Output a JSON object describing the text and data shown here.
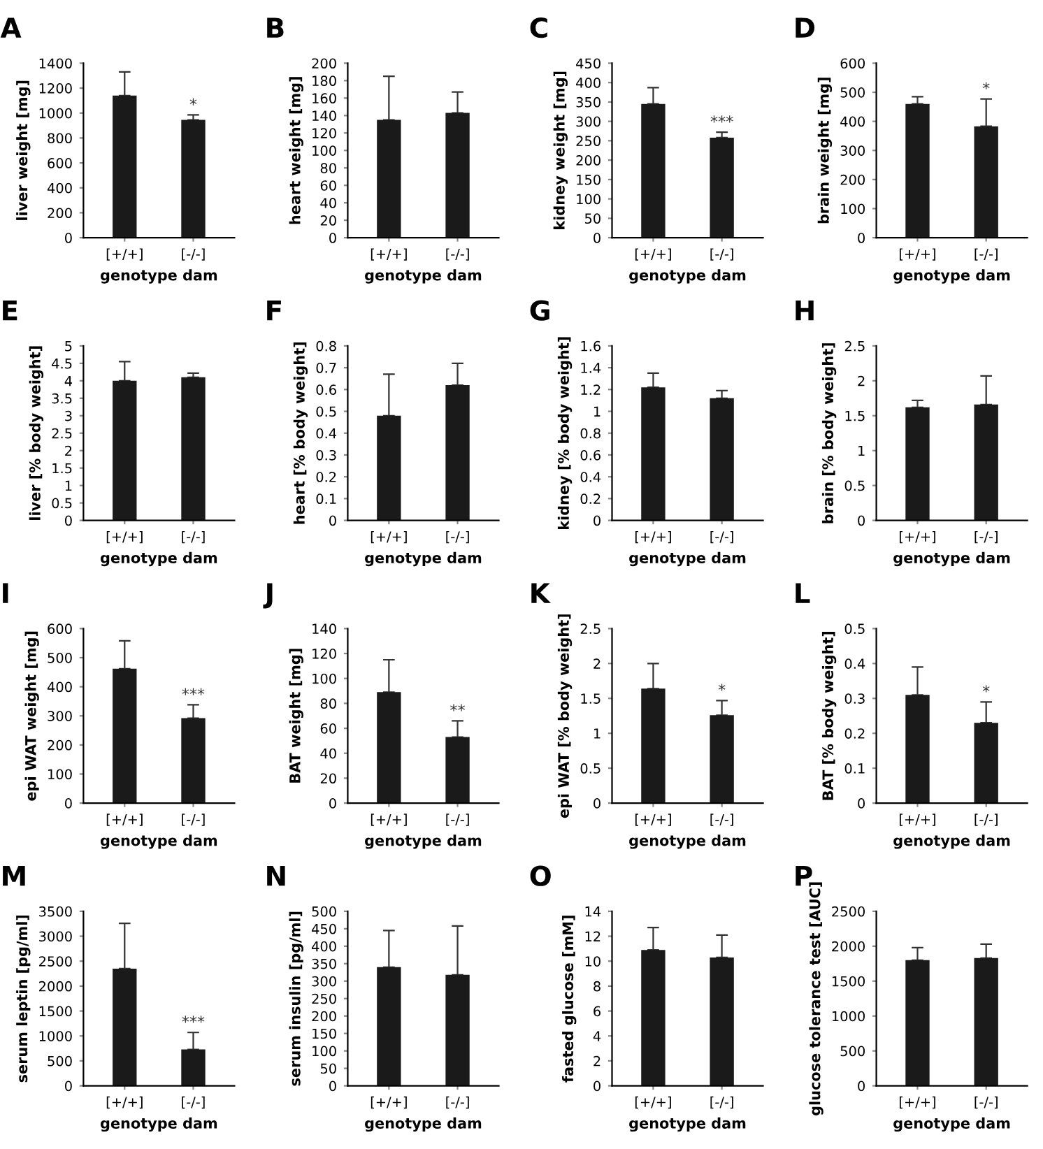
{
  "chart_data": [
    {
      "type": "bar",
      "title": "A",
      "xlabel": "genotype dam",
      "ylabel": "liver weight [mg]",
      "categories": [
        "[+/+]",
        "[-/-]"
      ],
      "values": [
        1140,
        945
      ],
      "errors": [
        [
          1140,
          1330
        ],
        [
          945,
          985
        ]
      ],
      "color": "#1a1a1a",
      "ylim": [
        0,
        1400
      ],
      "yticks": [
        0,
        200,
        400,
        600,
        800,
        1000,
        1200,
        1400
      ],
      "annotations": [
        {
          "text": "*",
          "x": "[-/-]",
          "y": 985
        }
      ]
    },
    {
      "type": "bar",
      "title": "B",
      "xlabel": "genotype dam",
      "ylabel": "heart weight [mg]",
      "categories": [
        "[+/+]",
        "[-/-]"
      ],
      "values": [
        135,
        143
      ],
      "errors": [
        [
          135,
          185
        ],
        [
          143,
          167
        ]
      ],
      "color": "#1a1a1a",
      "ylim": [
        0,
        200
      ],
      "yticks": [
        0,
        20,
        40,
        60,
        80,
        100,
        120,
        140,
        160,
        180,
        200
      ]
    },
    {
      "type": "bar",
      "title": "C",
      "xlabel": "genotype dam",
      "ylabel": "kidney weight [mg]",
      "categories": [
        "[+/+]",
        "[-/-]"
      ],
      "values": [
        345,
        258
      ],
      "errors": [
        [
          345,
          387
        ],
        [
          258,
          272
        ]
      ],
      "color": "#1a1a1a",
      "ylim": [
        0,
        450
      ],
      "yticks": [
        0,
        50,
        100,
        150,
        200,
        250,
        300,
        350,
        400,
        450
      ],
      "annotations": [
        {
          "text": "***",
          "x": "[-/-]",
          "y": 272
        }
      ]
    },
    {
      "type": "bar",
      "title": "D",
      "xlabel": "genotype dam",
      "ylabel": "brain weight [mg]",
      "categories": [
        "[+/+]",
        "[-/-]"
      ],
      "values": [
        460,
        383
      ],
      "errors": [
        [
          460,
          485
        ],
        [
          383,
          477
        ]
      ],
      "color": "#1a1a1a",
      "ylim": [
        0,
        600
      ],
      "yticks": [
        0,
        100,
        200,
        300,
        400,
        500,
        600
      ],
      "annotations": [
        {
          "text": "*",
          "x": "[-/-]",
          "y": 477
        }
      ]
    },
    {
      "type": "bar",
      "title": "E",
      "xlabel": "genotype dam",
      "ylabel": "liver [% body weight]",
      "categories": [
        "[+/+]",
        "[-/-]"
      ],
      "values": [
        4.0,
        4.1
      ],
      "errors": [
        [
          4.0,
          4.55
        ],
        [
          4.1,
          4.22
        ]
      ],
      "color": "#1a1a1a",
      "ylim": [
        0,
        5
      ],
      "yticks": [
        0,
        0.5,
        1,
        1.5,
        2,
        2.5,
        3,
        3.5,
        4,
        4.5,
        5
      ]
    },
    {
      "type": "bar",
      "title": "F",
      "xlabel": "genotype dam",
      "ylabel": "heart [% body weight]",
      "categories": [
        "[+/+]",
        "[-/-]"
      ],
      "values": [
        0.48,
        0.62
      ],
      "errors": [
        [
          0.48,
          0.67
        ],
        [
          0.62,
          0.72
        ]
      ],
      "color": "#1a1a1a",
      "ylim": [
        0,
        0.8
      ],
      "yticks": [
        0,
        0.1,
        0.2,
        0.3,
        0.4,
        0.5,
        0.6,
        0.7,
        0.8
      ]
    },
    {
      "type": "bar",
      "title": "G",
      "xlabel": "genotype dam",
      "ylabel": "kidney [% body weight]",
      "categories": [
        "[+/+]",
        "[-/-]"
      ],
      "values": [
        1.22,
        1.12
      ],
      "errors": [
        [
          1.22,
          1.35
        ],
        [
          1.12,
          1.19
        ]
      ],
      "color": "#1a1a1a",
      "ylim": [
        0,
        1.6
      ],
      "yticks": [
        0,
        0.2,
        0.4,
        0.6,
        0.8,
        1,
        1.2,
        1.4,
        1.6
      ]
    },
    {
      "type": "bar",
      "title": "H",
      "xlabel": "genotype dam",
      "ylabel": "brain [% body weight]",
      "categories": [
        "[+/+]",
        "[-/-]"
      ],
      "values": [
        1.62,
        1.66
      ],
      "errors": [
        [
          1.62,
          1.72
        ],
        [
          1.66,
          2.07
        ]
      ],
      "color": "#1a1a1a",
      "ylim": [
        0,
        2.5
      ],
      "yticks": [
        0,
        0.5,
        1,
        1.5,
        2,
        2.5
      ]
    },
    {
      "type": "bar",
      "title": "I",
      "xlabel": "genotype dam",
      "ylabel": "epi WAT weight [mg]",
      "categories": [
        "[+/+]",
        "[-/-]"
      ],
      "values": [
        462,
        292
      ],
      "errors": [
        [
          462,
          558
        ],
        [
          292,
          338
        ]
      ],
      "color": "#1a1a1a",
      "ylim": [
        0,
        600
      ],
      "yticks": [
        0,
        100,
        200,
        300,
        400,
        500,
        600
      ],
      "annotations": [
        {
          "text": "***",
          "x": "[-/-]",
          "y": 338
        }
      ]
    },
    {
      "type": "bar",
      "title": "J",
      "xlabel": "genotype dam",
      "ylabel": "BAT weight [mg]",
      "categories": [
        "[+/+]",
        "[-/-]"
      ],
      "values": [
        89,
        53
      ],
      "errors": [
        [
          89,
          115
        ],
        [
          53,
          66
        ]
      ],
      "color": "#1a1a1a",
      "ylim": [
        0,
        140
      ],
      "yticks": [
        0,
        20,
        40,
        60,
        80,
        100,
        120,
        140
      ],
      "annotations": [
        {
          "text": "**",
          "x": "[-/-]",
          "y": 66
        }
      ]
    },
    {
      "type": "bar",
      "title": "K",
      "xlabel": "genotype dam",
      "ylabel": "epi WAT [% body weight]",
      "categories": [
        "[+/+]",
        "[-/-]"
      ],
      "values": [
        1.64,
        1.26
      ],
      "errors": [
        [
          1.64,
          2.0
        ],
        [
          1.26,
          1.47
        ]
      ],
      "color": "#1a1a1a",
      "ylim": [
        0,
        2.5
      ],
      "yticks": [
        0,
        0.5,
        1,
        1.5,
        2,
        2.5
      ],
      "annotations": [
        {
          "text": "*",
          "x": "[-/-]",
          "y": 1.47
        }
      ]
    },
    {
      "type": "bar",
      "title": "L",
      "xlabel": "genotype dam",
      "ylabel": "BAT [% body weight]",
      "categories": [
        "[+/+]",
        "[-/-]"
      ],
      "values": [
        0.31,
        0.23
      ],
      "errors": [
        [
          0.31,
          0.39
        ],
        [
          0.23,
          0.29
        ]
      ],
      "color": "#1a1a1a",
      "ylim": [
        0,
        0.5
      ],
      "yticks": [
        0,
        0.1,
        0.2,
        0.3,
        0.4,
        0.5
      ],
      "annotations": [
        {
          "text": "*",
          "x": "[-/-]",
          "y": 0.29
        }
      ]
    },
    {
      "type": "bar",
      "title": "M",
      "xlabel": "genotype dam",
      "ylabel": "serum leptin [pg/ml]",
      "categories": [
        "[+/+]",
        "[-/-]"
      ],
      "values": [
        2350,
        730
      ],
      "errors": [
        [
          2350,
          3260
        ],
        [
          730,
          1070
        ]
      ],
      "color": "#1a1a1a",
      "ylim": [
        0,
        3500
      ],
      "yticks": [
        0,
        500,
        1000,
        1500,
        2000,
        2500,
        3000,
        3500
      ],
      "annotations": [
        {
          "text": "***",
          "x": "[-/-]",
          "y": 1070
        }
      ]
    },
    {
      "type": "bar",
      "title": "N",
      "xlabel": "genotype dam",
      "ylabel": "serum insulin [pg/ml]",
      "categories": [
        "[+/+]",
        "[-/-]"
      ],
      "values": [
        340,
        318
      ],
      "errors": [
        [
          340,
          445
        ],
        [
          318,
          458
        ]
      ],
      "color": "#1a1a1a",
      "ylim": [
        0,
        500
      ],
      "yticks": [
        0,
        50,
        100,
        150,
        200,
        250,
        300,
        350,
        400,
        450,
        500
      ]
    },
    {
      "type": "bar",
      "title": "O",
      "xlabel": "genotype dam",
      "ylabel": "fasted glucose [mM]",
      "categories": [
        "[+/+]",
        "[-/-]"
      ],
      "values": [
        10.9,
        10.3
      ],
      "errors": [
        [
          10.9,
          12.7
        ],
        [
          10.3,
          12.1
        ]
      ],
      "color": "#1a1a1a",
      "ylim": [
        0,
        14
      ],
      "yticks": [
        0,
        2,
        4,
        6,
        8,
        10,
        12,
        14
      ]
    },
    {
      "type": "bar",
      "title": "P",
      "xlabel": "genotype dam",
      "ylabel": "glucose tolerance test [AUC]",
      "categories": [
        "[+/+]",
        "[-/-]"
      ],
      "values": [
        1800,
        1830
      ],
      "errors": [
        [
          1800,
          1980
        ],
        [
          1830,
          2030
        ]
      ],
      "color": "#1a1a1a",
      "ylim": [
        0,
        2500
      ],
      "yticks": [
        0,
        500,
        1000,
        1500,
        2000,
        2500
      ]
    }
  ]
}
